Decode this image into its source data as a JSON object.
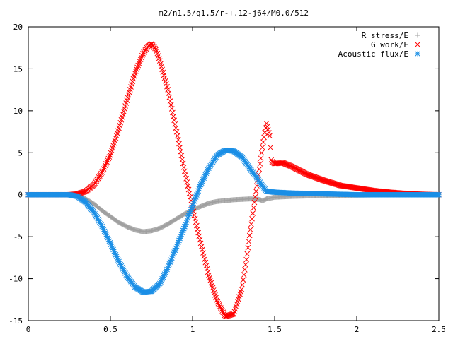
{
  "chart_data": {
    "type": "scatter",
    "title": "m2/n1.5/q1.5/r-+.12-j64/M0.0/512",
    "xlabel": "",
    "ylabel": "",
    "xlim": [
      0,
      2.5
    ],
    "ylim": [
      -15,
      20
    ],
    "x_ticks": [
      "0",
      "0.5",
      "1",
      "1.5",
      "2",
      "2.5"
    ],
    "y_ticks": [
      "-15",
      "-10",
      "-5",
      "0",
      "5",
      "10",
      "15",
      "20"
    ],
    "grid": false,
    "legend_position": "top-right",
    "series": [
      {
        "name": "R stress/E",
        "marker": "plus",
        "color": "#a0a0a0",
        "x": [
          0.0,
          0.25,
          0.3,
          0.35,
          0.4,
          0.45,
          0.5,
          0.55,
          0.6,
          0.65,
          0.7,
          0.75,
          0.8,
          0.85,
          0.9,
          0.95,
          1.0,
          1.05,
          1.1,
          1.15,
          1.2,
          1.25,
          1.3,
          1.35,
          1.4,
          1.43,
          1.45,
          1.5,
          1.6,
          1.8,
          2.0,
          2.2,
          2.5
        ],
        "values": [
          0.0,
          0.0,
          -0.1,
          -0.5,
          -1.1,
          -1.9,
          -2.6,
          -3.3,
          -3.8,
          -4.2,
          -4.4,
          -4.3,
          -4.0,
          -3.5,
          -2.9,
          -2.3,
          -1.8,
          -1.4,
          -1.0,
          -0.8,
          -0.7,
          -0.6,
          -0.55,
          -0.5,
          -0.55,
          -0.7,
          -0.5,
          -0.3,
          -0.2,
          -0.1,
          -0.05,
          0.0,
          0.0
        ]
      },
      {
        "name": "G work/E",
        "marker": "cross",
        "color": "#ff0000",
        "x": [
          0.0,
          0.25,
          0.3,
          0.35,
          0.4,
          0.45,
          0.5,
          0.55,
          0.6,
          0.65,
          0.7,
          0.73,
          0.75,
          0.78,
          0.8,
          0.85,
          0.9,
          0.95,
          1.0,
          1.05,
          1.1,
          1.15,
          1.2,
          1.25,
          1.3,
          1.33,
          1.35,
          1.38,
          1.4,
          1.43,
          1.45,
          1.47,
          1.48,
          1.5,
          1.55,
          1.6,
          1.7,
          1.8,
          1.9,
          2.0,
          2.1,
          2.2,
          2.3,
          2.4,
          2.5
        ],
        "values": [
          0.0,
          0.0,
          0.1,
          0.4,
          1.2,
          2.7,
          4.8,
          7.8,
          11.2,
          14.5,
          16.9,
          17.7,
          18.0,
          17.2,
          16.0,
          12.5,
          7.8,
          3.0,
          -1.5,
          -5.8,
          -9.7,
          -12.7,
          -14.5,
          -14.2,
          -11.2,
          -7.5,
          -4.5,
          -0.5,
          2.2,
          6.2,
          8.5,
          7.0,
          4.0,
          3.7,
          3.8,
          3.4,
          2.4,
          1.7,
          1.1,
          0.8,
          0.5,
          0.3,
          0.15,
          0.05,
          0.0
        ]
      },
      {
        "name": "Acoustic flux/E",
        "marker": "star",
        "color": "#1b8fe6",
        "x": [
          0.0,
          0.25,
          0.3,
          0.35,
          0.4,
          0.45,
          0.5,
          0.55,
          0.6,
          0.65,
          0.7,
          0.75,
          0.8,
          0.85,
          0.9,
          0.95,
          1.0,
          1.05,
          1.1,
          1.15,
          1.2,
          1.25,
          1.3,
          1.35,
          1.4,
          1.45,
          1.5,
          1.6,
          1.8,
          2.0,
          2.2,
          2.5
        ],
        "values": [
          0.0,
          0.0,
          -0.2,
          -0.9,
          -2.1,
          -3.8,
          -5.8,
          -7.9,
          -9.7,
          -11.0,
          -11.6,
          -11.5,
          -10.6,
          -8.7,
          -6.3,
          -3.9,
          -1.3,
          1.2,
          3.2,
          4.7,
          5.3,
          5.2,
          4.5,
          3.1,
          1.8,
          0.4,
          0.3,
          0.2,
          0.1,
          0.0,
          0.0,
          0.0
        ]
      }
    ]
  }
}
